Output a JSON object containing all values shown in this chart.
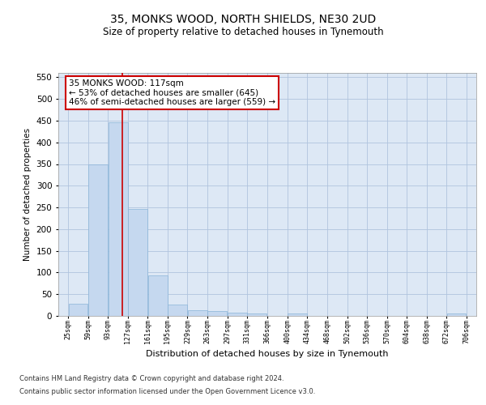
{
  "title": "35, MONKS WOOD, NORTH SHIELDS, NE30 2UD",
  "subtitle": "Size of property relative to detached houses in Tynemouth",
  "xlabel": "Distribution of detached houses by size in Tynemouth",
  "ylabel": "Number of detached properties",
  "bar_color": "#c5d8ef",
  "bar_edge_color": "#8ab4d8",
  "background_color": "#ffffff",
  "plot_bg_color": "#dde8f5",
  "grid_color": "#b0c4de",
  "vline_color": "#cc0000",
  "vline_x": 117,
  "annotation_line1": "35 MONKS WOOD: 117sqm",
  "annotation_line2": "← 53% of detached houses are smaller (645)",
  "annotation_line3": "46% of semi-detached houses are larger (559) →",
  "annotation_box_color": "#cc0000",
  "bin_edges": [
    25,
    59,
    93,
    127,
    161,
    195,
    229,
    263,
    297,
    331,
    366,
    400,
    434,
    468,
    502,
    536,
    570,
    604,
    638,
    672,
    706
  ],
  "bin_values": [
    28,
    350,
    447,
    247,
    93,
    26,
    14,
    11,
    8,
    5,
    0,
    5,
    0,
    0,
    0,
    0,
    0,
    0,
    0,
    5
  ],
  "ylim": [
    0,
    560
  ],
  "yticks": [
    0,
    50,
    100,
    150,
    200,
    250,
    300,
    350,
    400,
    450,
    500,
    550
  ],
  "footnote_line1": "Contains HM Land Registry data © Crown copyright and database right 2024.",
  "footnote_line2": "Contains public sector information licensed under the Open Government Licence v3.0."
}
